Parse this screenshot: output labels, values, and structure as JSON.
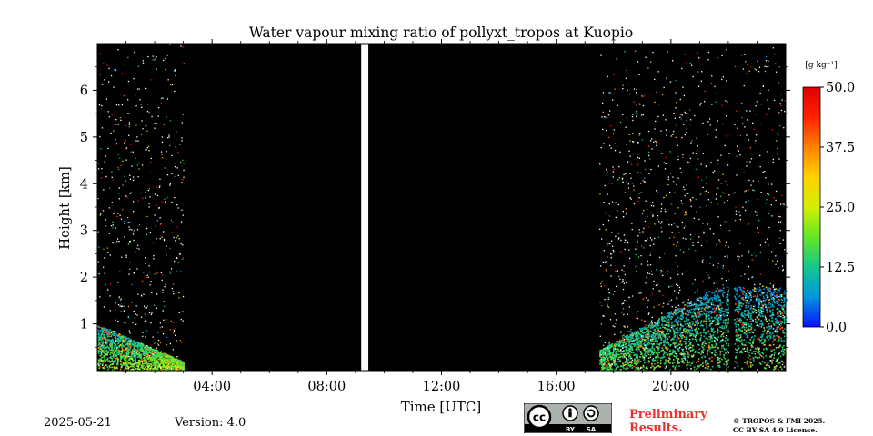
{
  "chart_data": {
    "type": "heatmap",
    "title": "Water vapour mixing ratio of pollyxt_tropos at Kuopio",
    "xlabel": "Time [UTC]",
    "ylabel": "Height [km]",
    "xlim": [
      0,
      24
    ],
    "ylim": [
      0,
      7
    ],
    "xticks": [
      {
        "value": 4,
        "label": "04:00"
      },
      {
        "value": 8,
        "label": "08:00"
      },
      {
        "value": 12,
        "label": "12:00"
      },
      {
        "value": 16,
        "label": "16:00"
      },
      {
        "value": 20,
        "label": "20:00"
      }
    ],
    "yticks": [
      {
        "value": 1,
        "label": "1"
      },
      {
        "value": 2,
        "label": "2"
      },
      {
        "value": 3,
        "label": "3"
      },
      {
        "value": 4,
        "label": "4"
      },
      {
        "value": 5,
        "label": "5"
      },
      {
        "value": 6,
        "label": "6"
      }
    ],
    "colorbar": {
      "unit": "[g kg⁻¹]",
      "range": [
        0,
        50
      ],
      "ticks": [
        {
          "value": 0,
          "label": "0.0"
        },
        {
          "value": 12.5,
          "label": "12.5"
        },
        {
          "value": 25,
          "label": "25.0"
        },
        {
          "value": 37.5,
          "label": "37.5"
        },
        {
          "value": 50,
          "label": "50.0"
        }
      ],
      "colormap": [
        "#0a10ff",
        "#0096dc",
        "#14c88c",
        "#64e628",
        "#d2f000",
        "#ffd200",
        "#ff8200",
        "#ff2000",
        "#e00000"
      ]
    },
    "background_color": "#000000",
    "no_data_gaps": [
      {
        "x_start": 9.2,
        "x_end": 9.45
      }
    ],
    "data_regions": [
      {
        "x_start": 0,
        "x_end": 3.0,
        "low_level_max_value": 25,
        "dense_up_to_km": 1.0
      },
      {
        "x_start": 17.5,
        "x_end": 24,
        "low_level_max_value": 20,
        "dense_up_to_km": 1.8
      }
    ],
    "sparse_noise_up_to_km": 7,
    "dark_profile_gaps": [
      {
        "x": 22.1
      }
    ]
  },
  "footer": {
    "date": "2025-05-21",
    "version": "Version: 4.0",
    "preliminary_line1": "Preliminary",
    "preliminary_line2": "Results.",
    "copyright_line1": "© TROPOS & FMI 2025.",
    "copyright_line2": "CC BY SA 4.0 License.",
    "cc_by": "BY",
    "cc_sa": "SA",
    "cc_mark": "cc"
  }
}
